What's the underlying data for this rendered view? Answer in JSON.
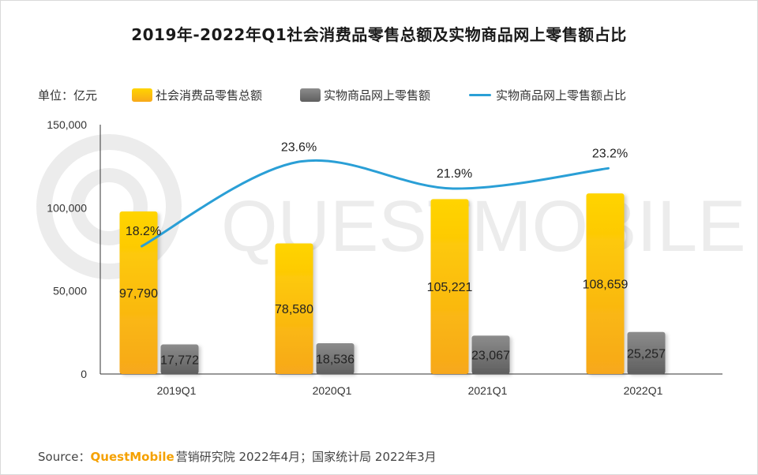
{
  "title": "2019年-2022年Q1社会消费品零售总额及实物商品网上零售额占比",
  "unit_label": "单位：亿元",
  "legend": {
    "bar1": "社会消费品零售总额",
    "bar2": "实物商品网上零售额",
    "line": "实物商品网上零售额占比"
  },
  "watermark": "QUESTMOBILE",
  "source": {
    "prefix": "Source：",
    "brand": "QuestMobile",
    "rest": "营销研究院 2022年4月；国家统计局 2022年3月"
  },
  "colors": {
    "bar1_top": "#ffd400",
    "bar1_bottom": "#f7a81b",
    "bar2_top": "#8c8c8c",
    "bar2_bottom": "#5f5f5f",
    "line": "#2a9fd6",
    "axis": "#333333"
  },
  "chart_data": {
    "type": "bar",
    "categories": [
      "2019Q1",
      "2020Q1",
      "2021Q1",
      "2022Q1"
    ],
    "series": [
      {
        "name": "社会消费品零售总额",
        "type": "bar",
        "axis": "left",
        "values": [
          97790,
          78580,
          105221,
          108659
        ],
        "labels": [
          "97,790",
          "78,580",
          "105,221",
          "108,659"
        ]
      },
      {
        "name": "实物商品网上零售额",
        "type": "bar",
        "axis": "left",
        "values": [
          17772,
          18536,
          23067,
          25257
        ],
        "labels": [
          "17,772",
          "18,536",
          "23,067",
          "25,257"
        ]
      },
      {
        "name": "实物商品网上零售额占比",
        "type": "line",
        "axis": "right",
        "values": [
          18.2,
          23.6,
          21.9,
          23.2
        ],
        "labels": [
          "18.2%",
          "23.6%",
          "21.9%",
          "23.2%"
        ]
      }
    ],
    "ylim": [
      0,
      150000
    ],
    "yticks": [
      0,
      50000,
      100000,
      150000
    ],
    "ytick_labels": [
      "0",
      "50,000",
      "100,000",
      "150,000"
    ],
    "ylim_right": [
      10,
      26
    ],
    "grid": false,
    "legend_position": "top-left"
  }
}
